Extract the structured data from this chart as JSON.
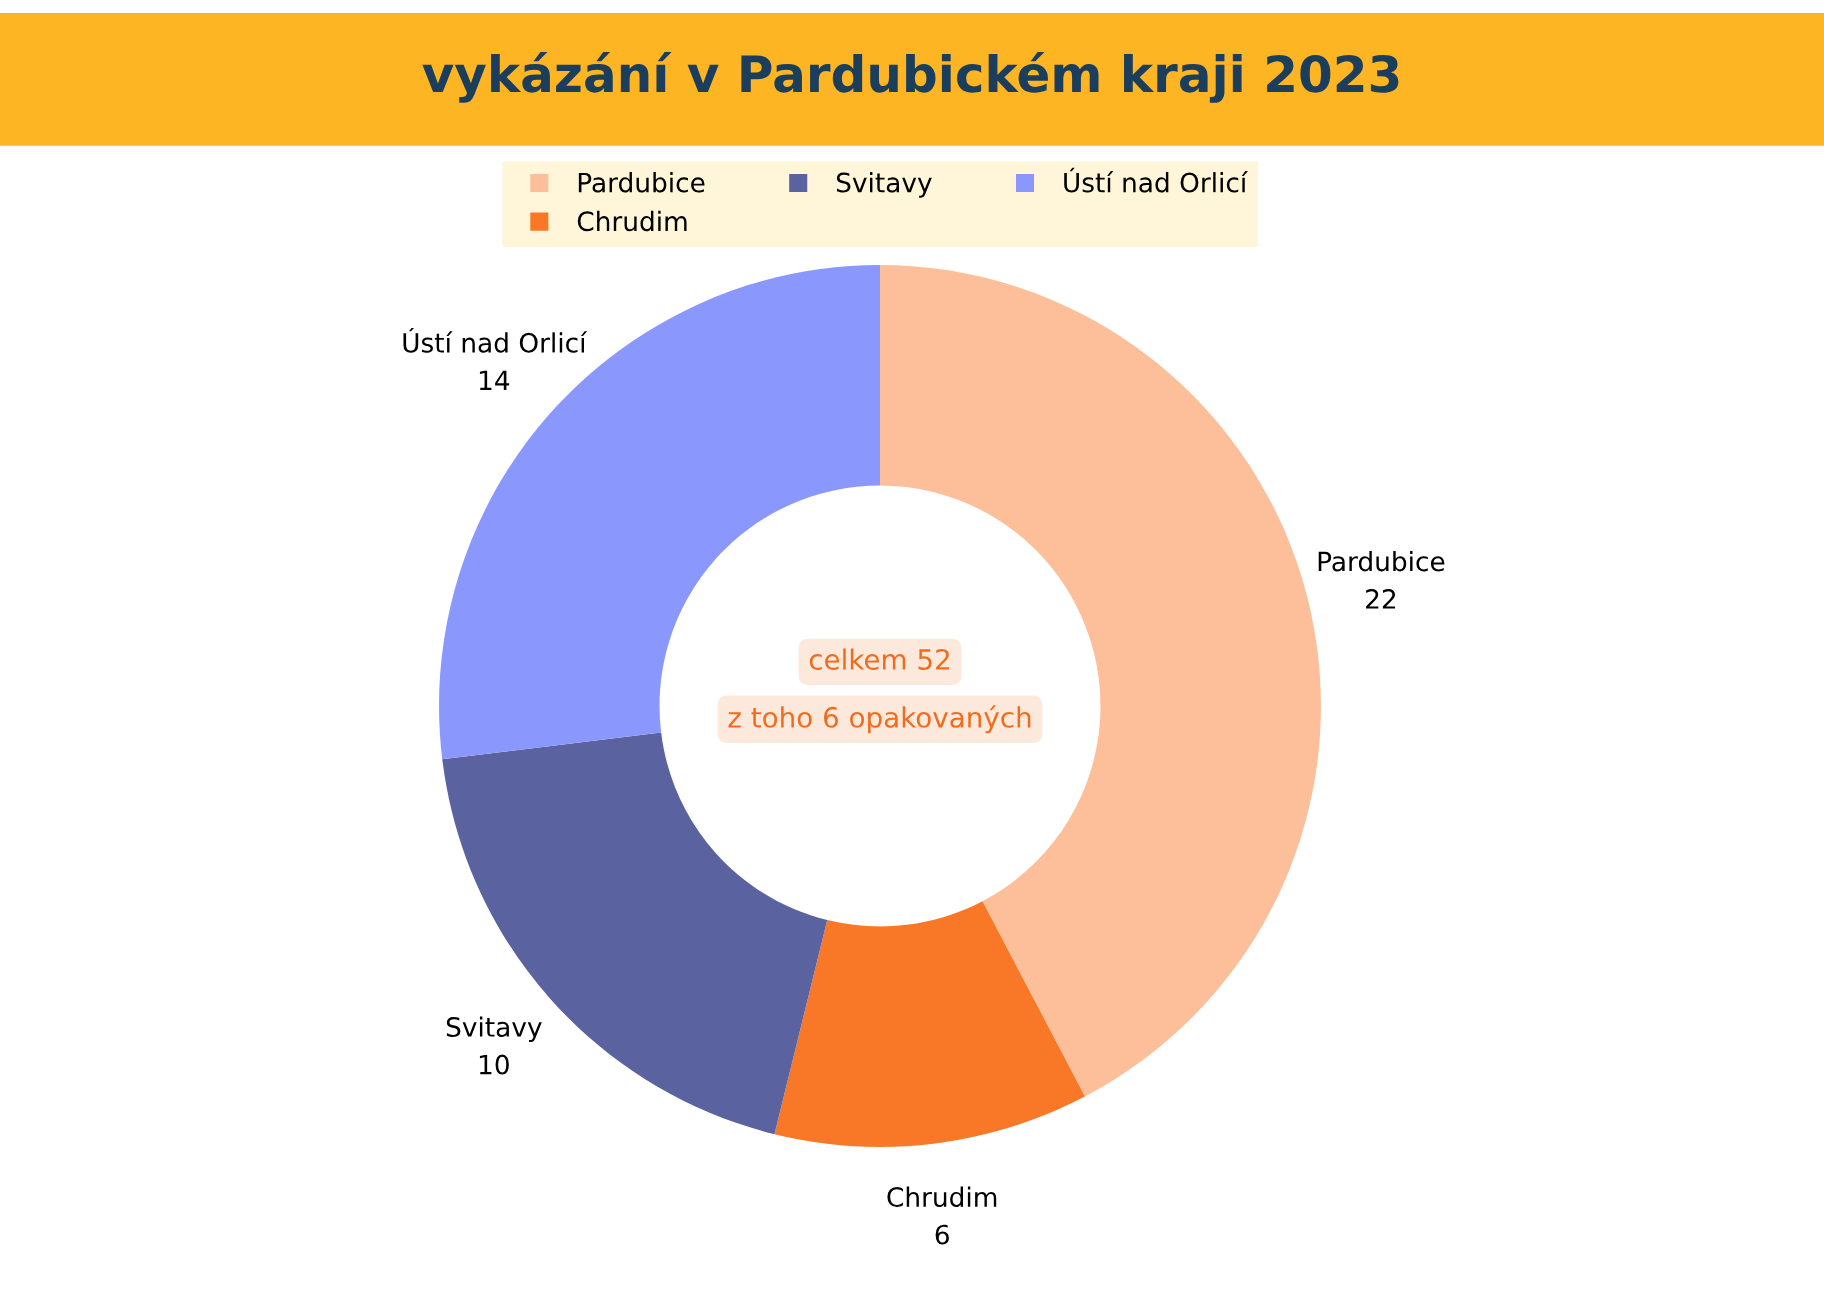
{
  "chart_data": {
    "type": "donut",
    "title": "vykázání v Pardubickém kraji 2023",
    "categories": [
      "Pardubice",
      "Chrudim",
      "Svitavy",
      "Ústí nad Orlicí"
    ],
    "values": [
      22,
      6,
      10,
      14
    ],
    "colors": [
      "#fcbf99",
      "#f97827",
      "#5a63a0",
      "#8a97fd"
    ],
    "data_labels": true,
    "legend": "top",
    "annotations": [
      "celkem 52",
      "z toho 6 opakovaných"
    ]
  }
}
